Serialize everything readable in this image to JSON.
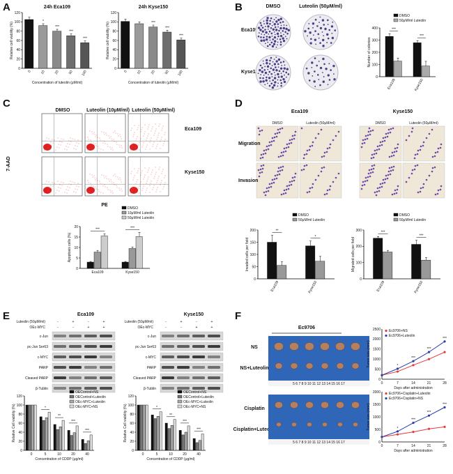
{
  "letters": {
    "a": "A",
    "b": "B",
    "c": "C",
    "d": "D",
    "e": "E",
    "f": "F"
  },
  "panelA": {
    "left": {
      "title": "24h Eca109",
      "ylabel": "Relative cell viability (%)",
      "xlabel": "Concentration of luteolin (μM/ml)",
      "yticks": [
        "0",
        "20",
        "40",
        "60",
        "80",
        "100",
        "120"
      ],
      "cats": [
        "0",
        "10",
        "20",
        "50",
        "100"
      ],
      "values": [
        105,
        92,
        80,
        70,
        55
      ],
      "err": [
        5,
        4,
        4,
        4,
        4
      ],
      "stars": [
        "",
        "*",
        "***",
        "***",
        "***"
      ]
    },
    "right": {
      "title": "24h Kyse150",
      "ylabel": "Relative cell viability (%)",
      "xlabel": "Concentration of luteolin (μM/ml)",
      "yticks": [
        "0",
        "20",
        "40",
        "60",
        "80",
        "100",
        "120"
      ],
      "cats": [
        "0",
        "10",
        "20",
        "50",
        "100"
      ],
      "values": [
        101,
        96,
        89,
        78,
        61
      ],
      "err": [
        5,
        4,
        4,
        4,
        4
      ],
      "stars": [
        "",
        "",
        "***",
        "***",
        "***"
      ]
    }
  },
  "panelB": {
    "col1": "DMSO",
    "col2": "Luteolin (50μM/ml)",
    "row1": "Eca109",
    "row2": "Kyse150",
    "chart": {
      "ylabel": "Number of colonies",
      "yticks": [
        "0",
        "100",
        "200",
        "300",
        "400"
      ],
      "legend": [
        "DMSO",
        "50μM/ml Luteolin"
      ],
      "cats": [
        "Eca109",
        "Kyse150"
      ],
      "series": [
        {
          "name": "DMSO",
          "values": [
            330,
            278
          ]
        },
        {
          "name": "50μM/ml Luteolin",
          "values": [
            128,
            88
          ]
        }
      ],
      "err": [
        [
          22,
          18
        ],
        [
          25,
          38
        ]
      ],
      "stars": [
        "***",
        "***"
      ]
    }
  },
  "panelC": {
    "cols": [
      "DMSO",
      "Luteolin (10μM/ml)",
      "Luteolin (50μM/ml)"
    ],
    "rows": [
      "Eca109",
      "Kyse150"
    ],
    "ylabel": "7-AAD",
    "xlabel": "PE",
    "chart": {
      "ylabel": "Apoptosis cells (%)",
      "yticks": [
        "0",
        "5",
        "10",
        "15",
        "20"
      ],
      "legend": [
        "DMSO",
        "10μM/ml Luteolin",
        "50μM/ml Luteolin"
      ],
      "cats": [
        "Eca109",
        "Kyse150"
      ],
      "series": [
        {
          "name": "DMSO",
          "values": [
            3,
            3
          ]
        },
        {
          "name": "10μM/ml Luteolin",
          "values": [
            7.8,
            9.5
          ]
        },
        {
          "name": "50μM/ml Luteolin",
          "values": [
            15.5,
            15.2
          ]
        }
      ],
      "err": [
        [
          0.3,
          0.3
        ],
        [
          0.8,
          0.7
        ],
        [
          1.0,
          2.0
        ]
      ],
      "stars": [
        "***",
        "***",
        "***",
        "***"
      ]
    }
  },
  "panelD": {
    "groups": [
      "Eca109",
      "Kyse150"
    ],
    "cols": [
      "DMSO",
      "Luteolin (50μM/ml)"
    ],
    "rows": [
      "Migration",
      "Invasion"
    ],
    "chartInv": {
      "ylabel": "Invaded cells per field",
      "yticks": [
        "0",
        "50",
        "100",
        "150",
        "200"
      ],
      "legend": [
        "DMSO",
        "50μM/ml Luteolin"
      ],
      "cats": [
        "Eca109",
        "Kyse150"
      ],
      "series": [
        {
          "name": "DMSO",
          "values": [
            150,
            135
          ]
        },
        {
          "name": "50μM/ml Luteolin",
          "values": [
            55,
            72
          ]
        }
      ],
      "err": [
        [
          28,
          20
        ],
        [
          15,
          20
        ]
      ],
      "stars": [
        "**",
        "*"
      ]
    },
    "chartMig": {
      "ylabel": "Migrated cells per field",
      "yticks": [
        "0",
        "100",
        "200",
        "300"
      ],
      "legend": [
        "DMSO",
        "50μM/ml Luteolin"
      ],
      "cats": [
        "Eca109",
        "Kyse150"
      ],
      "series": [
        {
          "name": "DMSO",
          "values": [
            250,
            212
          ]
        },
        {
          "name": "50μM/ml Luteolin",
          "values": [
            165,
            115
          ]
        }
      ],
      "err": [
        [
          10,
          25
        ],
        [
          10,
          15
        ]
      ],
      "stars": [
        "***",
        "***"
      ]
    }
  },
  "panelE": {
    "groups": [
      "Eca109",
      "Kyse150"
    ],
    "treat": [
      "Luteolin (50μM/ml)",
      "OEc-MYC"
    ],
    "signs": {
      "lut": [
        "-",
        "+",
        "-",
        "+"
      ],
      "myc": [
        "-",
        "-",
        "+",
        "+"
      ]
    },
    "bands": [
      "c-Jun",
      "pc-Jun Ser63",
      "c-MYC",
      "PARP",
      "Cleaved PARP",
      "β-Tublin"
    ],
    "chart": {
      "ylabel": "Relative Cell viability (%)",
      "xlabel": "Concentration of CDDP (μg/ml)",
      "yticks": [
        "0",
        "20",
        "40",
        "60",
        "80",
        "100",
        "120"
      ],
      "cats": [
        "0",
        "5",
        "10",
        "20",
        "40"
      ],
      "legend": [
        "OEControl+NS",
        "OEControl+Luteolin",
        "OEc-MYC+Luteolin",
        "OEc-MYC+NS"
      ],
      "series": [
        {
          "name": "OEControl+NS",
          "values": [
            100,
            74,
            57,
            44,
            24
          ]
        },
        {
          "name": "OEControl+Luteolin",
          "values": [
            100,
            66,
            46,
            33,
            15
          ]
        },
        {
          "name": "OEc-MYC+Luteolin",
          "values": [
            100,
            72,
            52,
            39,
            21
          ]
        },
        {
          "name": "OEc-MYC+NS",
          "values": [
            100,
            84,
            66,
            54,
            34
          ]
        }
      ],
      "stars": [
        "",
        "*",
        "**",
        "***",
        "***"
      ]
    },
    "chart2": {
      "ylabel": "Relative Cell viability (%)",
      "xlabel": "Concentration of CDDP (μg/ml)",
      "yticks": [
        "0",
        "20",
        "40",
        "60",
        "80",
        "100",
        "120"
      ],
      "cats": [
        "0",
        "5",
        "10",
        "20",
        "40"
      ],
      "legend": [
        "OEControl+NS",
        "OEControl+Luteolin",
        "OEc-MYC+Luteolin",
        "OEc-MYC+NS"
      ],
      "series": [
        {
          "name": "OEControl+NS",
          "values": [
            100,
            78,
            60,
            44,
            26
          ]
        },
        {
          "name": "OEControl+Luteolin",
          "values": [
            100,
            70,
            48,
            34,
            17
          ]
        },
        {
          "name": "OEc-MYC+Luteolin",
          "values": [
            100,
            75,
            55,
            40,
            22
          ]
        },
        {
          "name": "OEc-MYC+NS",
          "values": [
            100,
            85,
            68,
            54,
            36
          ]
        }
      ],
      "stars": [
        "",
        "*",
        "**",
        "***",
        "***"
      ]
    }
  },
  "panelF": {
    "title": "Ec9706",
    "rows": [
      "NS",
      "NS+Luteolin",
      "Cisplatin",
      "Cisplatin+Luteolin"
    ],
    "ruler": "5 6 7 8 9 10 11 12 13 14 15 16 17",
    "chart1": {
      "ylabel": "Tumor size (mm³)",
      "xlabel": "Days after administration",
      "xticks": [
        "0",
        "7",
        "14",
        "21",
        "28"
      ],
      "yticks": [
        "0",
        "500",
        "1000",
        "1500",
        "2000",
        "2500"
      ],
      "legend": [
        "Ec9706+NS",
        "Ec9706+Luteolin"
      ],
      "series": [
        {
          "name": "Ec9706+NS",
          "color": "#e23b3b",
          "values": [
            200,
            380,
            700,
            1000,
            1350
          ]
        },
        {
          "name": "Ec9706+Luteolin",
          "color": "#2a3da8",
          "values": [
            200,
            520,
            900,
            1350,
            1880
          ]
        }
      ],
      "stars": [
        "",
        "*",
        "***",
        "***",
        "***"
      ]
    },
    "chart2": {
      "ylabel": "Tumor size (mm³)",
      "xlabel": "Days after administration",
      "xticks": [
        "0",
        "7",
        "14",
        "21",
        "28"
      ],
      "yticks": [
        "0",
        "500",
        "1000",
        "1500",
        "2000"
      ],
      "legend": [
        "Ec9706+Cisplatin+Luteolin",
        "Ec9706+Cisplatin+NS"
      ],
      "series": [
        {
          "name": "Ec9706+Cisplatin+Luteolin",
          "color": "#e23b3b",
          "values": [
            200,
            300,
            400,
            520,
            600
          ]
        },
        {
          "name": "Ec9706+Cisplatin+NS",
          "color": "#2a3da8",
          "values": [
            200,
            420,
            760,
            1050,
            1380
          ]
        }
      ],
      "stars": [
        "",
        "*",
        "***",
        "***",
        "***"
      ]
    }
  }
}
